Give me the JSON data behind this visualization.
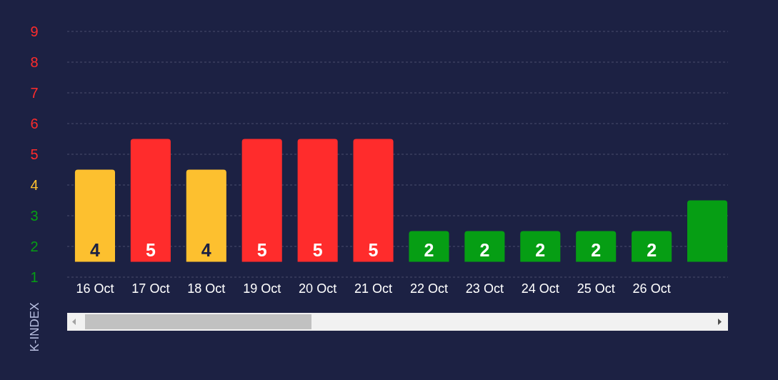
{
  "chart_data": {
    "type": "bar",
    "ylabel": "K-INDEX",
    "categories": [
      "16 Oct",
      "17 Oct",
      "18 Oct",
      "19 Oct",
      "20 Oct",
      "21 Oct",
      "22 Oct",
      "23 Oct",
      "24 Oct",
      "25 Oct",
      "26 Oct",
      null
    ],
    "base": [
      1.5,
      1.5,
      1.5,
      1.5,
      1.5,
      1.5,
      1.5,
      1.5,
      1.5,
      1.5,
      1.5,
      1.5
    ],
    "values": [
      3,
      4,
      3,
      4,
      4,
      4,
      1,
      1,
      1,
      1,
      1,
      2
    ],
    "value_labels": [
      "4",
      "5",
      "4",
      "5",
      "5",
      "5",
      "2",
      "2",
      "2",
      "2",
      "2",
      null
    ],
    "colors": [
      "#fdc02f",
      "#ff2c2c",
      "#fdc02f",
      "#ff2c2c",
      "#ff2c2c",
      "#ff2c2c",
      "#069e14",
      "#069e14",
      "#069e14",
      "#069e14",
      "#069e14",
      "#069e14"
    ],
    "ylim": [
      1,
      9
    ],
    "yticks": [
      1,
      2,
      3,
      4,
      5,
      6,
      7,
      8,
      9
    ],
    "grid": "y"
  }
}
